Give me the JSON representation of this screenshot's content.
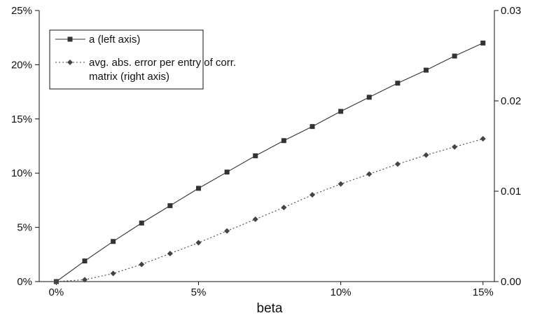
{
  "chart_data": {
    "type": "line",
    "xlabel": "beta",
    "x": [
      0,
      1,
      2,
      3,
      4,
      5,
      6,
      7,
      8,
      9,
      10,
      11,
      12,
      13,
      14,
      15
    ],
    "xlim": [
      -0.6,
      15.4
    ],
    "xticks": [
      0,
      5,
      10,
      15
    ],
    "xtick_labels": [
      "0%",
      "5%",
      "10%",
      "15%"
    ],
    "y_left": {
      "ylim": [
        0,
        25
      ],
      "ticks": [
        0,
        5,
        10,
        15,
        20,
        25
      ],
      "tick_labels": [
        "0%",
        "5%",
        "10%",
        "15%",
        "20%",
        "25%"
      ]
    },
    "y_right": {
      "ylim": [
        0,
        0.03
      ],
      "ticks": [
        0,
        0.01,
        0.02,
        0.03
      ],
      "tick_labels": [
        "0.00",
        "0.01",
        "0.02",
        "0.03"
      ]
    },
    "series": [
      {
        "name": "a (left axis)",
        "axis": "left",
        "line_style": "solid",
        "marker": "square",
        "color": "#333333",
        "values": [
          0.0,
          1.9,
          3.7,
          5.4,
          7.0,
          8.6,
          10.1,
          11.6,
          13.0,
          14.3,
          15.7,
          17.0,
          18.3,
          19.5,
          20.8,
          22.0
        ]
      },
      {
        "name": "avg. abs. error per entry of corr. matrix (right axis)",
        "axis": "right",
        "line_style": "dotted",
        "marker": "diamond",
        "color": "#444444",
        "values": [
          0.0,
          0.0002,
          0.0009,
          0.0019,
          0.0031,
          0.0043,
          0.0056,
          0.0069,
          0.0082,
          0.0096,
          0.0108,
          0.0119,
          0.013,
          0.014,
          0.0149,
          0.0158
        ]
      }
    ],
    "legend": {
      "placement": "top-left",
      "lines": [
        [
          "a (left axis)"
        ],
        [
          "avg. abs. error per entry of corr.",
          "matrix (right axis)"
        ]
      ]
    },
    "grid": false
  }
}
